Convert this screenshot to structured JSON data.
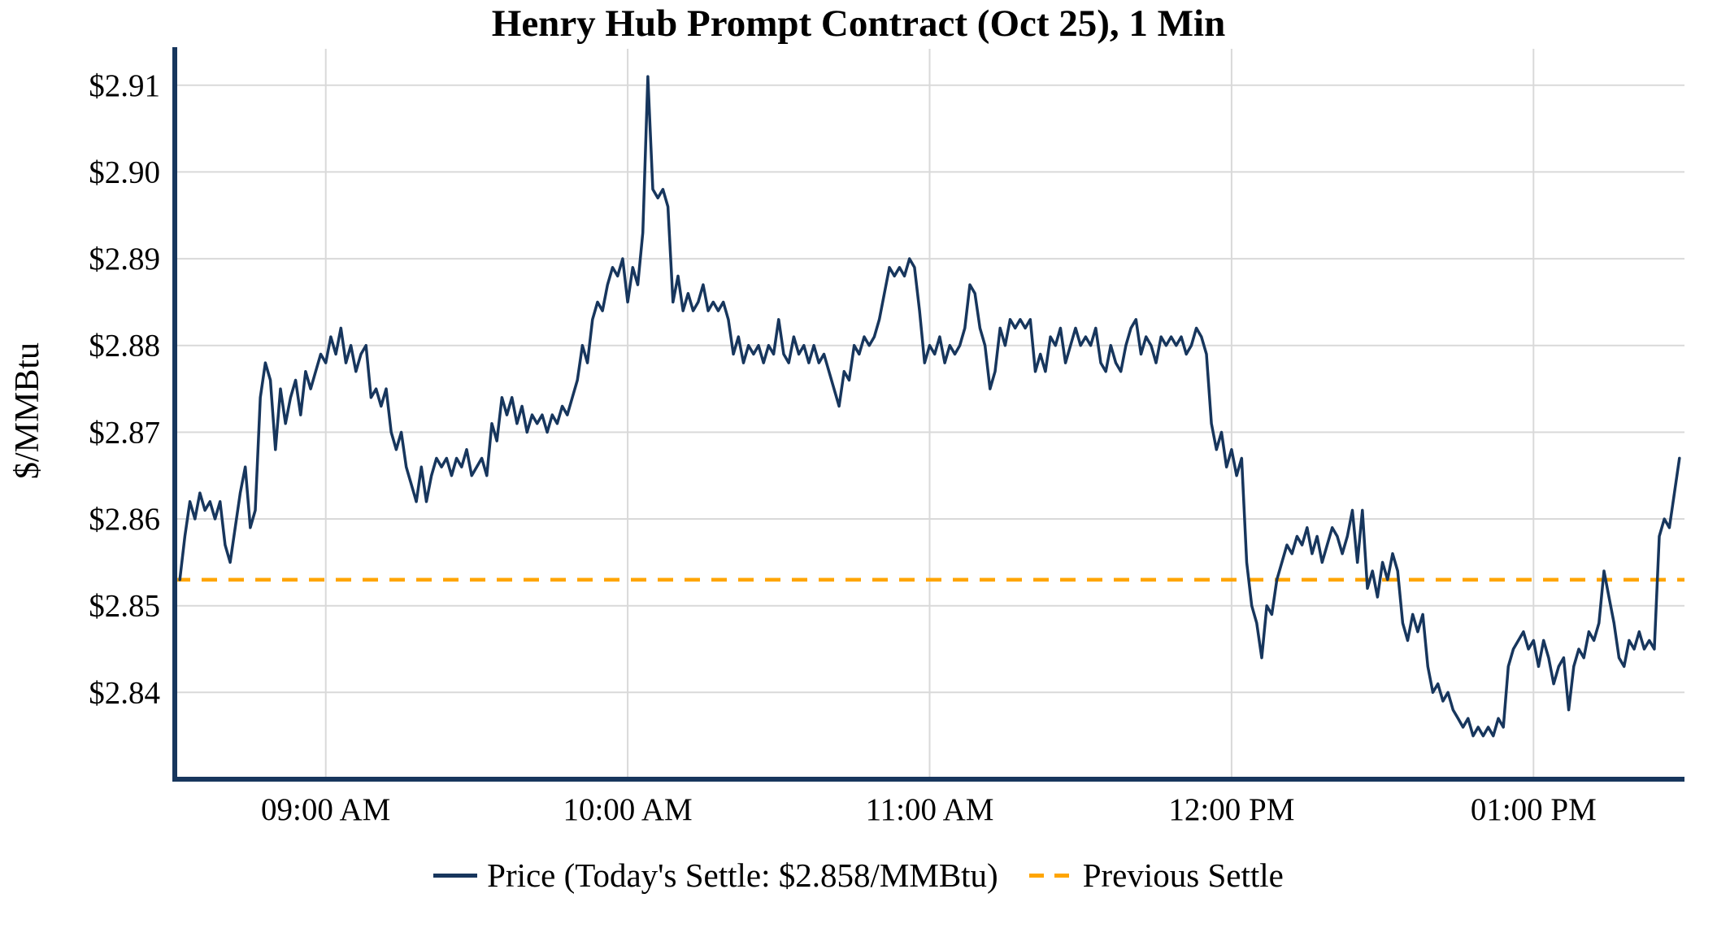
{
  "chart_data": {
    "type": "line",
    "title": "Henry Hub Prompt Contract (Oct 25), 1 Min",
    "ylabel": "$/MMBtu",
    "xlabel": "",
    "grid": true,
    "legend_position": "bottom",
    "x_tick_labels": [
      "09:00 AM",
      "10:00 AM",
      "11:00 AM",
      "12:00 PM",
      "01:00 PM"
    ],
    "x_tick_minutes": [
      540,
      600,
      660,
      720,
      780
    ],
    "x_range_minutes": [
      510,
      810
    ],
    "y_ticks": [
      2.84,
      2.85,
      2.86,
      2.87,
      2.88,
      2.89,
      2.9,
      2.91
    ],
    "y_tick_labels": [
      "$2.84",
      "$2.85",
      "$2.86",
      "$2.87",
      "$2.88",
      "$2.89",
      "$2.90",
      "$2.91"
    ],
    "ylim": [
      2.83,
      2.9142
    ],
    "previous_settle": 2.853,
    "todays_settle": 2.858,
    "colors": {
      "price": "#17365d",
      "previous_settle": "#FFA500",
      "grid": "#d9d9d9",
      "axis": "#17365d",
      "text": "#000000",
      "background": "#ffffff"
    },
    "legend": [
      {
        "label": "Price (Today's Settle: $2.858/MMBtu)",
        "color": "#17365d",
        "style": "solid"
      },
      {
        "label": "Previous Settle",
        "color": "#FFA500",
        "style": "dashed"
      }
    ],
    "series": [
      {
        "name": "Price",
        "points": [
          [
            511,
            2.853
          ],
          [
            512,
            2.858
          ],
          [
            513,
            2.862
          ],
          [
            514,
            2.86
          ],
          [
            515,
            2.863
          ],
          [
            516,
            2.861
          ],
          [
            517,
            2.862
          ],
          [
            518,
            2.86
          ],
          [
            519,
            2.862
          ],
          [
            520,
            2.857
          ],
          [
            521,
            2.855
          ],
          [
            522,
            2.859
          ],
          [
            523,
            2.863
          ],
          [
            524,
            2.866
          ],
          [
            525,
            2.859
          ],
          [
            526,
            2.861
          ],
          [
            527,
            2.874
          ],
          [
            528,
            2.878
          ],
          [
            529,
            2.876
          ],
          [
            530,
            2.868
          ],
          [
            531,
            2.875
          ],
          [
            532,
            2.871
          ],
          [
            533,
            2.874
          ],
          [
            534,
            2.876
          ],
          [
            535,
            2.872
          ],
          [
            536,
            2.877
          ],
          [
            537,
            2.875
          ],
          [
            538,
            2.877
          ],
          [
            539,
            2.879
          ],
          [
            540,
            2.878
          ],
          [
            541,
            2.881
          ],
          [
            542,
            2.879
          ],
          [
            543,
            2.882
          ],
          [
            544,
            2.878
          ],
          [
            545,
            2.88
          ],
          [
            546,
            2.877
          ],
          [
            547,
            2.879
          ],
          [
            548,
            2.88
          ],
          [
            549,
            2.874
          ],
          [
            550,
            2.875
          ],
          [
            551,
            2.873
          ],
          [
            552,
            2.875
          ],
          [
            553,
            2.87
          ],
          [
            554,
            2.868
          ],
          [
            555,
            2.87
          ],
          [
            556,
            2.866
          ],
          [
            557,
            2.864
          ],
          [
            558,
            2.862
          ],
          [
            559,
            2.866
          ],
          [
            560,
            2.862
          ],
          [
            561,
            2.865
          ],
          [
            562,
            2.867
          ],
          [
            563,
            2.866
          ],
          [
            564,
            2.867
          ],
          [
            565,
            2.865
          ],
          [
            566,
            2.867
          ],
          [
            567,
            2.866
          ],
          [
            568,
            2.868
          ],
          [
            569,
            2.865
          ],
          [
            570,
            2.866
          ],
          [
            571,
            2.867
          ],
          [
            572,
            2.865
          ],
          [
            573,
            2.871
          ],
          [
            574,
            2.869
          ],
          [
            575,
            2.874
          ],
          [
            576,
            2.872
          ],
          [
            577,
            2.874
          ],
          [
            578,
            2.871
          ],
          [
            579,
            2.873
          ],
          [
            580,
            2.87
          ],
          [
            581,
            2.872
          ],
          [
            582,
            2.871
          ],
          [
            583,
            2.872
          ],
          [
            584,
            2.87
          ],
          [
            585,
            2.872
          ],
          [
            586,
            2.871
          ],
          [
            587,
            2.873
          ],
          [
            588,
            2.872
          ],
          [
            589,
            2.874
          ],
          [
            590,
            2.876
          ],
          [
            591,
            2.88
          ],
          [
            592,
            2.878
          ],
          [
            593,
            2.883
          ],
          [
            594,
            2.885
          ],
          [
            595,
            2.884
          ],
          [
            596,
            2.887
          ],
          [
            597,
            2.889
          ],
          [
            598,
            2.888
          ],
          [
            599,
            2.89
          ],
          [
            600,
            2.885
          ],
          [
            601,
            2.889
          ],
          [
            602,
            2.887
          ],
          [
            603,
            2.893
          ],
          [
            604,
            2.911
          ],
          [
            605,
            2.898
          ],
          [
            606,
            2.897
          ],
          [
            607,
            2.898
          ],
          [
            608,
            2.896
          ],
          [
            609,
            2.885
          ],
          [
            610,
            2.888
          ],
          [
            611,
            2.884
          ],
          [
            612,
            2.886
          ],
          [
            613,
            2.884
          ],
          [
            614,
            2.885
          ],
          [
            615,
            2.887
          ],
          [
            616,
            2.884
          ],
          [
            617,
            2.885
          ],
          [
            618,
            2.884
          ],
          [
            619,
            2.885
          ],
          [
            620,
            2.883
          ],
          [
            621,
            2.879
          ],
          [
            622,
            2.881
          ],
          [
            623,
            2.878
          ],
          [
            624,
            2.88
          ],
          [
            625,
            2.879
          ],
          [
            626,
            2.88
          ],
          [
            627,
            2.878
          ],
          [
            628,
            2.88
          ],
          [
            629,
            2.879
          ],
          [
            630,
            2.883
          ],
          [
            631,
            2.879
          ],
          [
            632,
            2.878
          ],
          [
            633,
            2.881
          ],
          [
            634,
            2.879
          ],
          [
            635,
            2.88
          ],
          [
            636,
            2.878
          ],
          [
            637,
            2.88
          ],
          [
            638,
            2.878
          ],
          [
            639,
            2.879
          ],
          [
            640,
            2.877
          ],
          [
            641,
            2.875
          ],
          [
            642,
            2.873
          ],
          [
            643,
            2.877
          ],
          [
            644,
            2.876
          ],
          [
            645,
            2.88
          ],
          [
            646,
            2.879
          ],
          [
            647,
            2.881
          ],
          [
            648,
            2.88
          ],
          [
            649,
            2.881
          ],
          [
            650,
            2.883
          ],
          [
            651,
            2.886
          ],
          [
            652,
            2.889
          ],
          [
            653,
            2.888
          ],
          [
            654,
            2.889
          ],
          [
            655,
            2.888
          ],
          [
            656,
            2.89
          ],
          [
            657,
            2.889
          ],
          [
            658,
            2.884
          ],
          [
            659,
            2.878
          ],
          [
            660,
            2.88
          ],
          [
            661,
            2.879
          ],
          [
            662,
            2.881
          ],
          [
            663,
            2.878
          ],
          [
            664,
            2.88
          ],
          [
            665,
            2.879
          ],
          [
            666,
            2.88
          ],
          [
            667,
            2.882
          ],
          [
            668,
            2.887
          ],
          [
            669,
            2.886
          ],
          [
            670,
            2.882
          ],
          [
            671,
            2.88
          ],
          [
            672,
            2.875
          ],
          [
            673,
            2.877
          ],
          [
            674,
            2.882
          ],
          [
            675,
            2.88
          ],
          [
            676,
            2.883
          ],
          [
            677,
            2.882
          ],
          [
            678,
            2.883
          ],
          [
            679,
            2.882
          ],
          [
            680,
            2.883
          ],
          [
            681,
            2.877
          ],
          [
            682,
            2.879
          ],
          [
            683,
            2.877
          ],
          [
            684,
            2.881
          ],
          [
            685,
            2.88
          ],
          [
            686,
            2.882
          ],
          [
            687,
            2.878
          ],
          [
            688,
            2.88
          ],
          [
            689,
            2.882
          ],
          [
            690,
            2.88
          ],
          [
            691,
            2.881
          ],
          [
            692,
            2.88
          ],
          [
            693,
            2.882
          ],
          [
            694,
            2.878
          ],
          [
            695,
            2.877
          ],
          [
            696,
            2.88
          ],
          [
            697,
            2.878
          ],
          [
            698,
            2.877
          ],
          [
            699,
            2.88
          ],
          [
            700,
            2.882
          ],
          [
            701,
            2.883
          ],
          [
            702,
            2.879
          ],
          [
            703,
            2.881
          ],
          [
            704,
            2.88
          ],
          [
            705,
            2.878
          ],
          [
            706,
            2.881
          ],
          [
            707,
            2.88
          ],
          [
            708,
            2.881
          ],
          [
            709,
            2.88
          ],
          [
            710,
            2.881
          ],
          [
            711,
            2.879
          ],
          [
            712,
            2.88
          ],
          [
            713,
            2.882
          ],
          [
            714,
            2.881
          ],
          [
            715,
            2.879
          ],
          [
            716,
            2.871
          ],
          [
            717,
            2.868
          ],
          [
            718,
            2.87
          ],
          [
            719,
            2.866
          ],
          [
            720,
            2.868
          ],
          [
            721,
            2.865
          ],
          [
            722,
            2.867
          ],
          [
            723,
            2.855
          ],
          [
            724,
            2.85
          ],
          [
            725,
            2.848
          ],
          [
            726,
            2.844
          ],
          [
            727,
            2.85
          ],
          [
            728,
            2.849
          ],
          [
            729,
            2.853
          ],
          [
            730,
            2.855
          ],
          [
            731,
            2.857
          ],
          [
            732,
            2.856
          ],
          [
            733,
            2.858
          ],
          [
            734,
            2.857
          ],
          [
            735,
            2.859
          ],
          [
            736,
            2.856
          ],
          [
            737,
            2.858
          ],
          [
            738,
            2.855
          ],
          [
            739,
            2.857
          ],
          [
            740,
            2.859
          ],
          [
            741,
            2.858
          ],
          [
            742,
            2.856
          ],
          [
            743,
            2.858
          ],
          [
            744,
            2.861
          ],
          [
            745,
            2.855
          ],
          [
            746,
            2.861
          ],
          [
            747,
            2.852
          ],
          [
            748,
            2.854
          ],
          [
            749,
            2.851
          ],
          [
            750,
            2.855
          ],
          [
            751,
            2.853
          ],
          [
            752,
            2.856
          ],
          [
            753,
            2.854
          ],
          [
            754,
            2.848
          ],
          [
            755,
            2.846
          ],
          [
            756,
            2.849
          ],
          [
            757,
            2.847
          ],
          [
            758,
            2.849
          ],
          [
            759,
            2.843
          ],
          [
            760,
            2.84
          ],
          [
            761,
            2.841
          ],
          [
            762,
            2.839
          ],
          [
            763,
            2.84
          ],
          [
            764,
            2.838
          ],
          [
            765,
            2.837
          ],
          [
            766,
            2.836
          ],
          [
            767,
            2.837
          ],
          [
            768,
            2.835
          ],
          [
            769,
            2.836
          ],
          [
            770,
            2.835
          ],
          [
            771,
            2.836
          ],
          [
            772,
            2.835
          ],
          [
            773,
            2.837
          ],
          [
            774,
            2.836
          ],
          [
            775,
            2.843
          ],
          [
            776,
            2.845
          ],
          [
            777,
            2.846
          ],
          [
            778,
            2.847
          ],
          [
            779,
            2.845
          ],
          [
            780,
            2.846
          ],
          [
            781,
            2.843
          ],
          [
            782,
            2.846
          ],
          [
            783,
            2.844
          ],
          [
            784,
            2.841
          ],
          [
            785,
            2.843
          ],
          [
            786,
            2.844
          ],
          [
            787,
            2.838
          ],
          [
            788,
            2.843
          ],
          [
            789,
            2.845
          ],
          [
            790,
            2.844
          ],
          [
            791,
            2.847
          ],
          [
            792,
            2.846
          ],
          [
            793,
            2.848
          ],
          [
            794,
            2.854
          ],
          [
            795,
            2.851
          ],
          [
            796,
            2.848
          ],
          [
            797,
            2.844
          ],
          [
            798,
            2.843
          ],
          [
            799,
            2.846
          ],
          [
            800,
            2.845
          ],
          [
            801,
            2.847
          ],
          [
            802,
            2.845
          ],
          [
            803,
            2.846
          ],
          [
            804,
            2.845
          ],
          [
            805,
            2.858
          ],
          [
            806,
            2.86
          ],
          [
            807,
            2.859
          ],
          [
            808,
            2.863
          ],
          [
            809,
            2.867
          ]
        ]
      }
    ]
  }
}
